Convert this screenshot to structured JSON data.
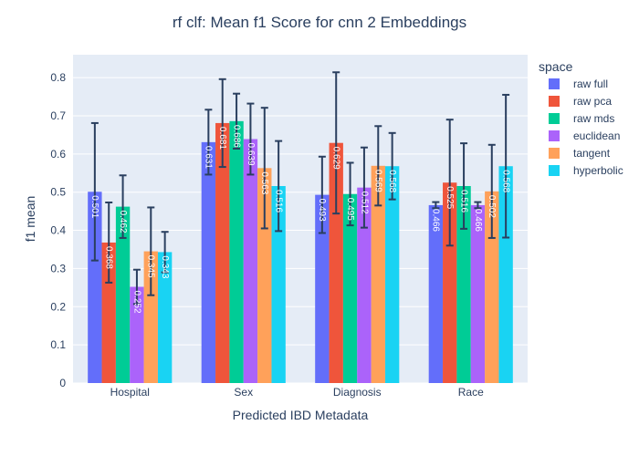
{
  "chart_data": {
    "type": "bar",
    "title": "rf clf: Mean f1 Score for cnn 2 Embeddings",
    "xlabel": "Predicted IBD Metadata",
    "ylabel": "f1 mean",
    "ylim": [
      0,
      0.86
    ],
    "yticks": [
      0,
      0.1,
      0.2,
      0.3,
      0.4,
      0.5,
      0.6,
      0.7,
      0.8
    ],
    "categories": [
      "Hospital",
      "Sex",
      "Diagnosis",
      "Race"
    ],
    "legend_title": "space",
    "legend_position": "right",
    "grid": true,
    "colors": {
      "plot_bg": "#e5ecf6",
      "grid": "#ffffff",
      "error_bar": "#2a3f5f"
    },
    "series": [
      {
        "name": "raw full",
        "color": "#636efa",
        "values": [
          0.501,
          0.631,
          0.493,
          0.466
        ],
        "labels": [
          "0.501",
          "0.631",
          "0.493",
          "0.466"
        ],
        "errors": [
          0.18,
          0.085,
          0.1,
          0.008
        ]
      },
      {
        "name": "raw pca",
        "color": "#ef553b",
        "values": [
          0.368,
          0.681,
          0.629,
          0.525
        ],
        "labels": [
          "0.368",
          "0.681",
          "0.629",
          "0.525"
        ],
        "errors": [
          0.105,
          0.115,
          0.185,
          0.165
        ]
      },
      {
        "name": "raw mds",
        "color": "#00cc96",
        "values": [
          0.462,
          0.686,
          0.495,
          0.516
        ],
        "labels": [
          "0.462",
          "0.686",
          "0.495",
          "0.516"
        ],
        "errors": [
          0.082,
          0.072,
          0.082,
          0.112
        ]
      },
      {
        "name": "euclidean",
        "color": "#ab63fa",
        "values": [
          0.252,
          0.639,
          0.512,
          0.466
        ],
        "labels": [
          "0.252",
          "0.639",
          "0.512",
          "0.466"
        ],
        "errors": [
          0.045,
          0.093,
          0.105,
          0.008
        ]
      },
      {
        "name": "tangent",
        "color": "#ffa15a",
        "values": [
          0.345,
          0.563,
          0.569,
          0.502
        ],
        "labels": [
          "0.345",
          "0.563",
          "0.569",
          "0.502"
        ],
        "errors": [
          0.115,
          0.158,
          0.104,
          0.122
        ]
      },
      {
        "name": "hyperbolic",
        "color": "#19d3f3",
        "values": [
          0.343,
          0.516,
          0.568,
          0.568
        ],
        "labels": [
          "0.343",
          "0.516",
          "0.568",
          "0.568"
        ],
        "errors": [
          0.053,
          0.118,
          0.087,
          0.187
        ]
      }
    ]
  }
}
